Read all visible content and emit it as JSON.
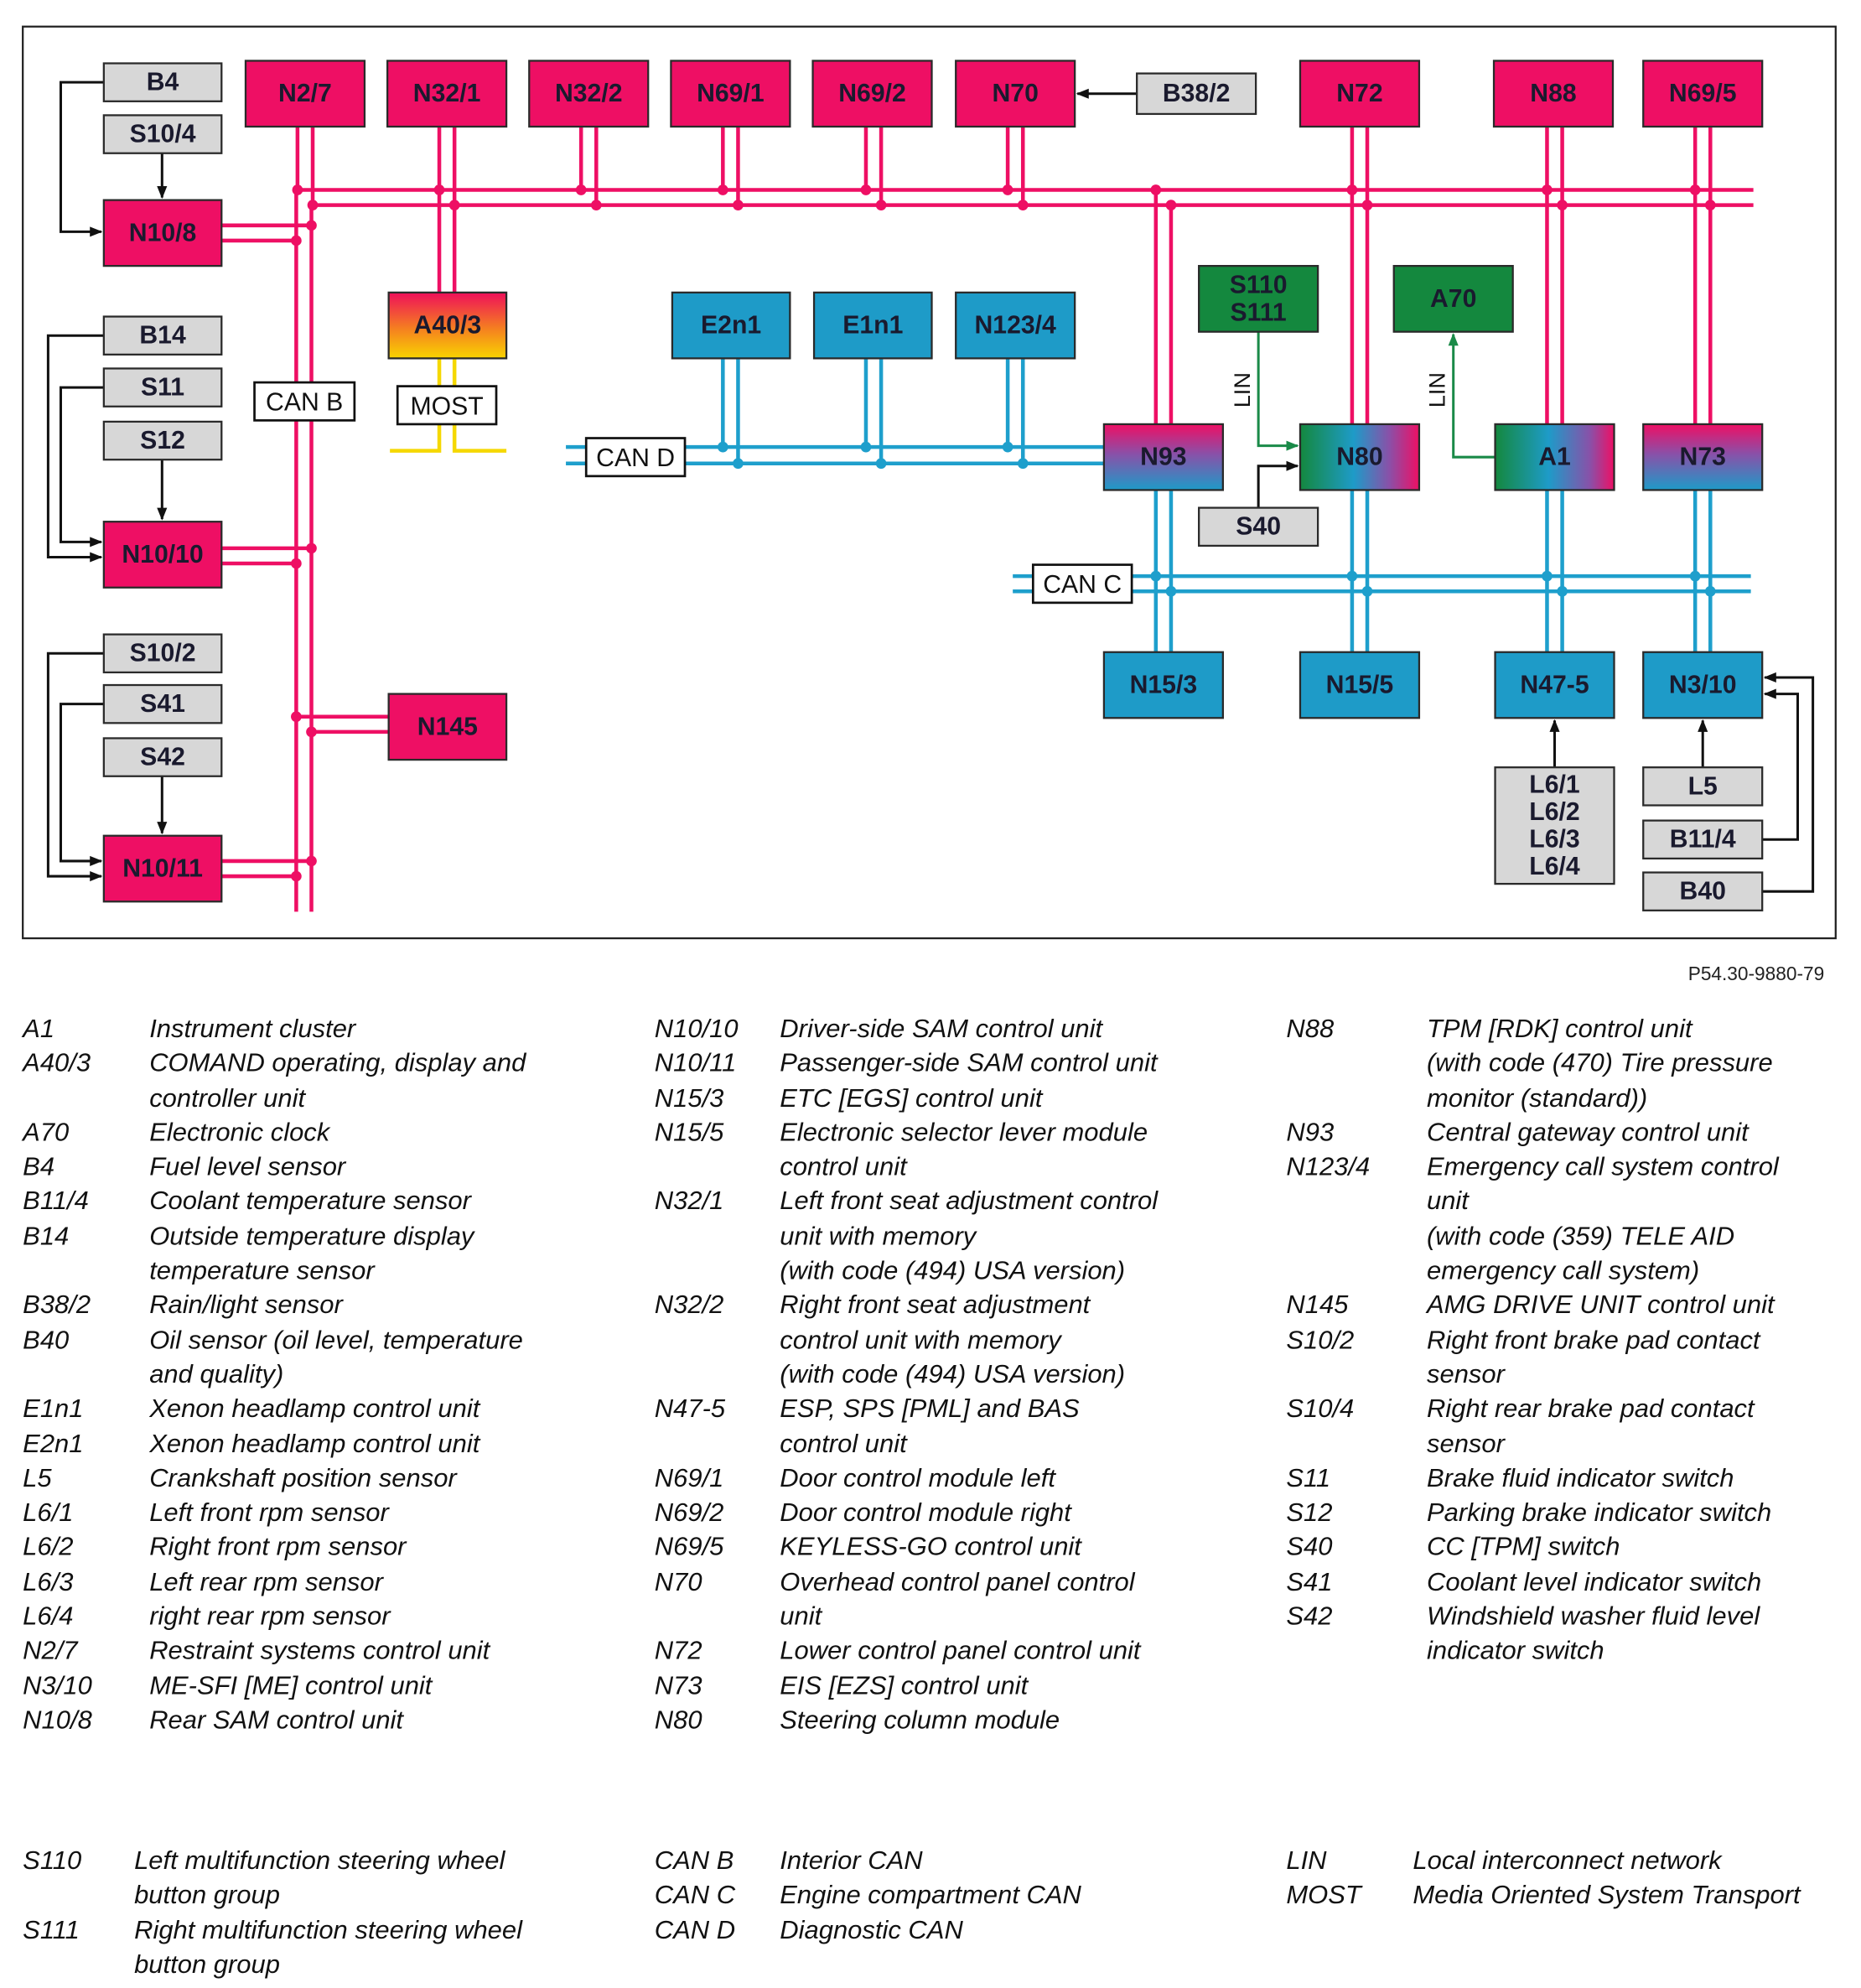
{
  "diagram": {
    "boxes": {
      "N2_7": "N2/7",
      "N32_1": "N32/1",
      "N32_2": "N32/2",
      "N69_1": "N69/1",
      "N69_2": "N69/2",
      "N70": "N70",
      "B38_2": "B38/2",
      "N72": "N72",
      "N88": "N88",
      "N69_5": "N69/5",
      "B4": "B4",
      "S10_4": "S10/4",
      "N10_8": "N10/8",
      "B14": "B14",
      "S11": "S11",
      "S12": "S12",
      "N10_10": "N10/10",
      "S10_2": "S10/2",
      "S41": "S41",
      "S42": "S42",
      "N10_11": "N10/11",
      "N145": "N145",
      "A40_3": "A40/3",
      "E2n1": "E2n1",
      "E1n1": "E1n1",
      "N123_4": "N123/4",
      "N93": "N93",
      "N80": "N80",
      "A1": "A1",
      "N73": "N73",
      "S110_S111": [
        "S110",
        "S111"
      ],
      "A70": "A70",
      "S40": "S40",
      "N15_3": "N15/3",
      "N15_5": "N15/5",
      "N47_5": "N47-5",
      "N3_10": "N3/10",
      "L6": [
        "L6/1",
        "L6/2",
        "L6/3",
        "L6/4"
      ],
      "L5": "L5",
      "B11_4": "B11/4",
      "B40": "B40"
    },
    "bus_labels": {
      "can_b": "CAN B",
      "most": "MOST",
      "can_d": "CAN D",
      "can_c": "CAN C"
    },
    "lin_labels": [
      "LIN",
      "LIN"
    ],
    "colors": {
      "can_b": "#ee0f64",
      "can_c_d": "#1e9fcc",
      "most": "#f5d800",
      "lin": "#1a8a48",
      "control_unit_pink": "#ee0f64",
      "control_unit_blue": "#1e9bc8",
      "control_unit_green": "#14883e",
      "sensor_gray": "#d7d7d7"
    }
  },
  "reference": "P54.30-9880-79",
  "legend": {
    "columns": [
      [
        {
          "code": "A1",
          "desc": [
            "Instrument cluster"
          ]
        },
        {
          "code": "A40/3",
          "desc": [
            "COMAND operating, display and",
            "controller unit"
          ]
        },
        {
          "code": "A70",
          "desc": [
            "Electronic clock"
          ]
        },
        {
          "code": "B4",
          "desc": [
            "Fuel level sensor"
          ]
        },
        {
          "code": "B11/4",
          "desc": [
            "Coolant temperature sensor"
          ]
        },
        {
          "code": "B14",
          "desc": [
            "Outside temperature display",
            "temperature sensor"
          ]
        },
        {
          "code": "B38/2",
          "desc": [
            "Rain/light sensor"
          ]
        },
        {
          "code": "B40",
          "desc": [
            "Oil sensor (oil level, temperature",
            "and quality)"
          ]
        },
        {
          "code": "E1n1",
          "desc": [
            "Xenon headlamp control unit"
          ]
        },
        {
          "code": "E2n1",
          "desc": [
            "Xenon headlamp control unit"
          ]
        },
        {
          "code": "L5",
          "desc": [
            "Crankshaft position sensor"
          ]
        },
        {
          "code": "L6/1",
          "desc": [
            "Left front rpm sensor"
          ]
        },
        {
          "code": "L6/2",
          "desc": [
            "Right front rpm sensor"
          ]
        },
        {
          "code": "L6/3",
          "desc": [
            "Left rear rpm sensor"
          ]
        },
        {
          "code": "L6/4",
          "desc": [
            "right rear rpm sensor"
          ]
        },
        {
          "code": "N2/7",
          "desc": [
            "Restraint systems control unit"
          ]
        },
        {
          "code": "N3/10",
          "desc": [
            "ME-SFI [ME] control unit"
          ]
        },
        {
          "code": "N10/8",
          "desc": [
            "Rear SAM control unit"
          ]
        }
      ],
      [
        {
          "code": "N10/10",
          "desc": [
            "Driver-side SAM control unit"
          ]
        },
        {
          "code": "N10/11",
          "desc": [
            "Passenger-side SAM control unit"
          ]
        },
        {
          "code": "N15/3",
          "desc": [
            "ETC [EGS] control unit"
          ]
        },
        {
          "code": "N15/5",
          "desc": [
            "Electronic selector lever module",
            "control unit"
          ]
        },
        {
          "code": "N32/1",
          "desc": [
            "Left front seat adjustment control",
            "unit with memory",
            "(with code (494) USA version)"
          ]
        },
        {
          "code": "N32/2",
          "desc": [
            "Right front seat adjustment",
            "control unit with memory",
            "(with code (494) USA version)"
          ]
        },
        {
          "code": "N47-5",
          "desc": [
            "ESP, SPS [PML] and BAS",
            "control unit"
          ]
        },
        {
          "code": "N69/1",
          "desc": [
            "Door control module left"
          ]
        },
        {
          "code": "N69/2",
          "desc": [
            "Door control module right"
          ]
        },
        {
          "code": "N69/5",
          "desc": [
            "KEYLESS-GO control unit"
          ]
        },
        {
          "code": "N70",
          "desc": [
            "Overhead control panel control",
            "unit"
          ]
        },
        {
          "code": "N72",
          "desc": [
            "Lower control panel control unit"
          ]
        },
        {
          "code": "N73",
          "desc": [
            "EIS [EZS] control unit"
          ]
        },
        {
          "code": "N80",
          "desc": [
            "Steering column module"
          ]
        }
      ],
      [
        {
          "code": "N88",
          "desc": [
            "TPM [RDK] control unit",
            "(with code (470) Tire pressure",
            "monitor (standard))"
          ]
        },
        {
          "code": "N93",
          "desc": [
            "Central gateway control unit"
          ]
        },
        {
          "code": "N123/4",
          "desc": [
            "Emergency call system control",
            "unit",
            "(with code (359) TELE AID",
            "emergency call system)"
          ]
        },
        {
          "code": "N145",
          "desc": [
            "AMG DRIVE UNIT control unit"
          ]
        },
        {
          "code": "S10/2",
          "desc": [
            "Right front brake pad contact",
            "sensor"
          ]
        },
        {
          "code": "S10/4",
          "desc": [
            "Right rear brake pad contact",
            "sensor"
          ]
        },
        {
          "code": "S11",
          "desc": [
            "Brake fluid indicator switch"
          ]
        },
        {
          "code": "S12",
          "desc": [
            "Parking brake indicator switch"
          ]
        },
        {
          "code": "S40",
          "desc": [
            "CC [TPM] switch"
          ]
        },
        {
          "code": "S41",
          "desc": [
            "Coolant level indicator switch"
          ]
        },
        {
          "code": "S42",
          "desc": [
            "Windshield washer fluid level",
            "indicator switch"
          ]
        }
      ]
    ],
    "bottom": [
      [
        {
          "code": "S110",
          "desc": [
            "Left multifunction steering wheel",
            "button group"
          ]
        },
        {
          "code": "S111",
          "desc": [
            "Right multifunction steering wheel",
            "button group"
          ]
        }
      ],
      [
        {
          "code": "CAN B",
          "desc": [
            "Interior CAN"
          ]
        },
        {
          "code": "CAN C",
          "desc": [
            "Engine compartment CAN"
          ]
        },
        {
          "code": "CAN D",
          "desc": [
            "Diagnostic CAN"
          ]
        }
      ],
      [
        {
          "code": "LIN",
          "desc": [
            "Local interconnect network"
          ]
        },
        {
          "code": "MOST",
          "desc": [
            "Media Oriented System Transport"
          ]
        }
      ]
    ]
  }
}
